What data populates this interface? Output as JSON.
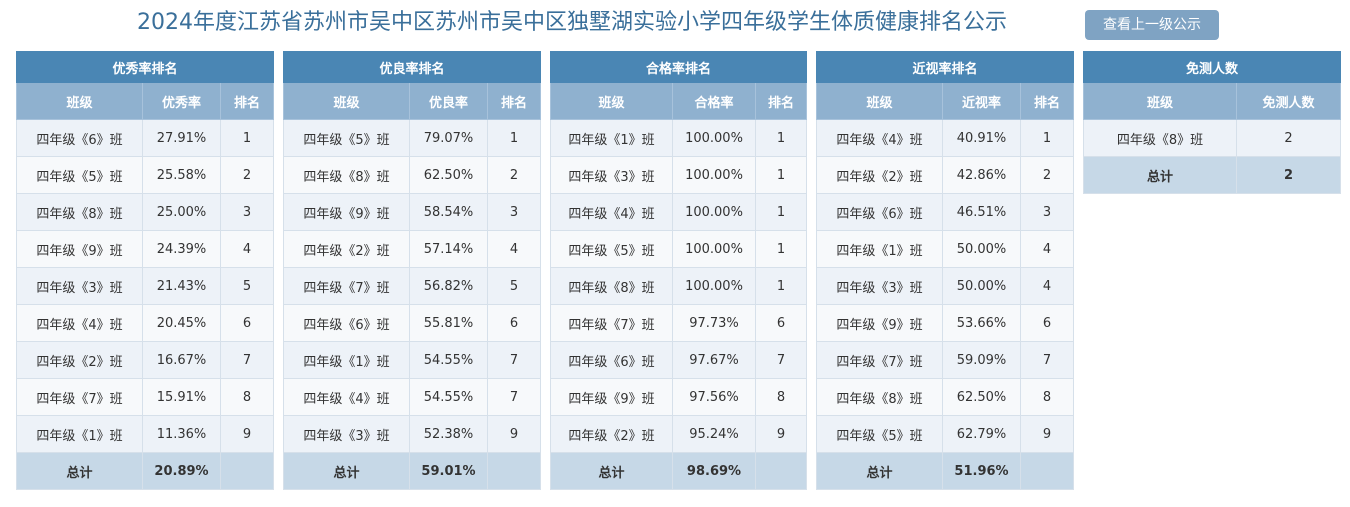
{
  "header": {
    "title": "2024年度江苏省苏州市吴中区苏州市吴中区独墅湖实验小学四年级学生体质健康排名公示",
    "up_button": "查看上一级公示"
  },
  "excellent": {
    "title": "优秀率排名",
    "columns": [
      "班级",
      "优秀率",
      "排名"
    ],
    "rows": [
      [
        "四年级《6》班",
        "27.91%",
        "1"
      ],
      [
        "四年级《5》班",
        "25.58%",
        "2"
      ],
      [
        "四年级《8》班",
        "25.00%",
        "3"
      ],
      [
        "四年级《9》班",
        "24.39%",
        "4"
      ],
      [
        "四年级《3》班",
        "21.43%",
        "5"
      ],
      [
        "四年级《4》班",
        "20.45%",
        "6"
      ],
      [
        "四年级《2》班",
        "16.67%",
        "7"
      ],
      [
        "四年级《7》班",
        "15.91%",
        "8"
      ],
      [
        "四年级《1》班",
        "11.36%",
        "9"
      ]
    ],
    "total": [
      "总计",
      "20.89%",
      ""
    ]
  },
  "good": {
    "title": "优良率排名",
    "columns": [
      "班级",
      "优良率",
      "排名"
    ],
    "rows": [
      [
        "四年级《5》班",
        "79.07%",
        "1"
      ],
      [
        "四年级《8》班",
        "62.50%",
        "2"
      ],
      [
        "四年级《9》班",
        "58.54%",
        "3"
      ],
      [
        "四年级《2》班",
        "57.14%",
        "4"
      ],
      [
        "四年级《7》班",
        "56.82%",
        "5"
      ],
      [
        "四年级《6》班",
        "55.81%",
        "6"
      ],
      [
        "四年级《1》班",
        "54.55%",
        "7"
      ],
      [
        "四年级《4》班",
        "54.55%",
        "7"
      ],
      [
        "四年级《3》班",
        "52.38%",
        "9"
      ]
    ],
    "total": [
      "总计",
      "59.01%",
      ""
    ]
  },
  "pass": {
    "title": "合格率排名",
    "columns": [
      "班级",
      "合格率",
      "排名"
    ],
    "rows": [
      [
        "四年级《1》班",
        "100.00%",
        "1"
      ],
      [
        "四年级《3》班",
        "100.00%",
        "1"
      ],
      [
        "四年级《4》班",
        "100.00%",
        "1"
      ],
      [
        "四年级《5》班",
        "100.00%",
        "1"
      ],
      [
        "四年级《8》班",
        "100.00%",
        "1"
      ],
      [
        "四年级《7》班",
        "97.73%",
        "6"
      ],
      [
        "四年级《6》班",
        "97.67%",
        "7"
      ],
      [
        "四年级《9》班",
        "97.56%",
        "8"
      ],
      [
        "四年级《2》班",
        "95.24%",
        "9"
      ]
    ],
    "total": [
      "总计",
      "98.69%",
      ""
    ]
  },
  "myopia": {
    "title": "近视率排名",
    "columns": [
      "班级",
      "近视率",
      "排名"
    ],
    "rows": [
      [
        "四年级《4》班",
        "40.91%",
        "1"
      ],
      [
        "四年级《2》班",
        "42.86%",
        "2"
      ],
      [
        "四年级《6》班",
        "46.51%",
        "3"
      ],
      [
        "四年级《1》班",
        "50.00%",
        "4"
      ],
      [
        "四年级《3》班",
        "50.00%",
        "4"
      ],
      [
        "四年级《9》班",
        "53.66%",
        "6"
      ],
      [
        "四年级《7》班",
        "59.09%",
        "7"
      ],
      [
        "四年级《8》班",
        "62.50%",
        "8"
      ],
      [
        "四年级《5》班",
        "62.79%",
        "9"
      ]
    ],
    "total": [
      "总计",
      "51.96%",
      ""
    ]
  },
  "exempt": {
    "title": "免测人数",
    "columns": [
      "班级",
      "免测人数"
    ],
    "rows": [
      [
        "四年级《8》班",
        "2"
      ]
    ],
    "total": [
      "总计",
      "2"
    ]
  },
  "colors": {
    "title_text": "#3a6f9a",
    "panel_title_bg": "#4a86b4",
    "column_header_bg": "#8fb1cf",
    "total_row_bg": "#c6d8e7",
    "button_bg": "#7fa3c3"
  }
}
